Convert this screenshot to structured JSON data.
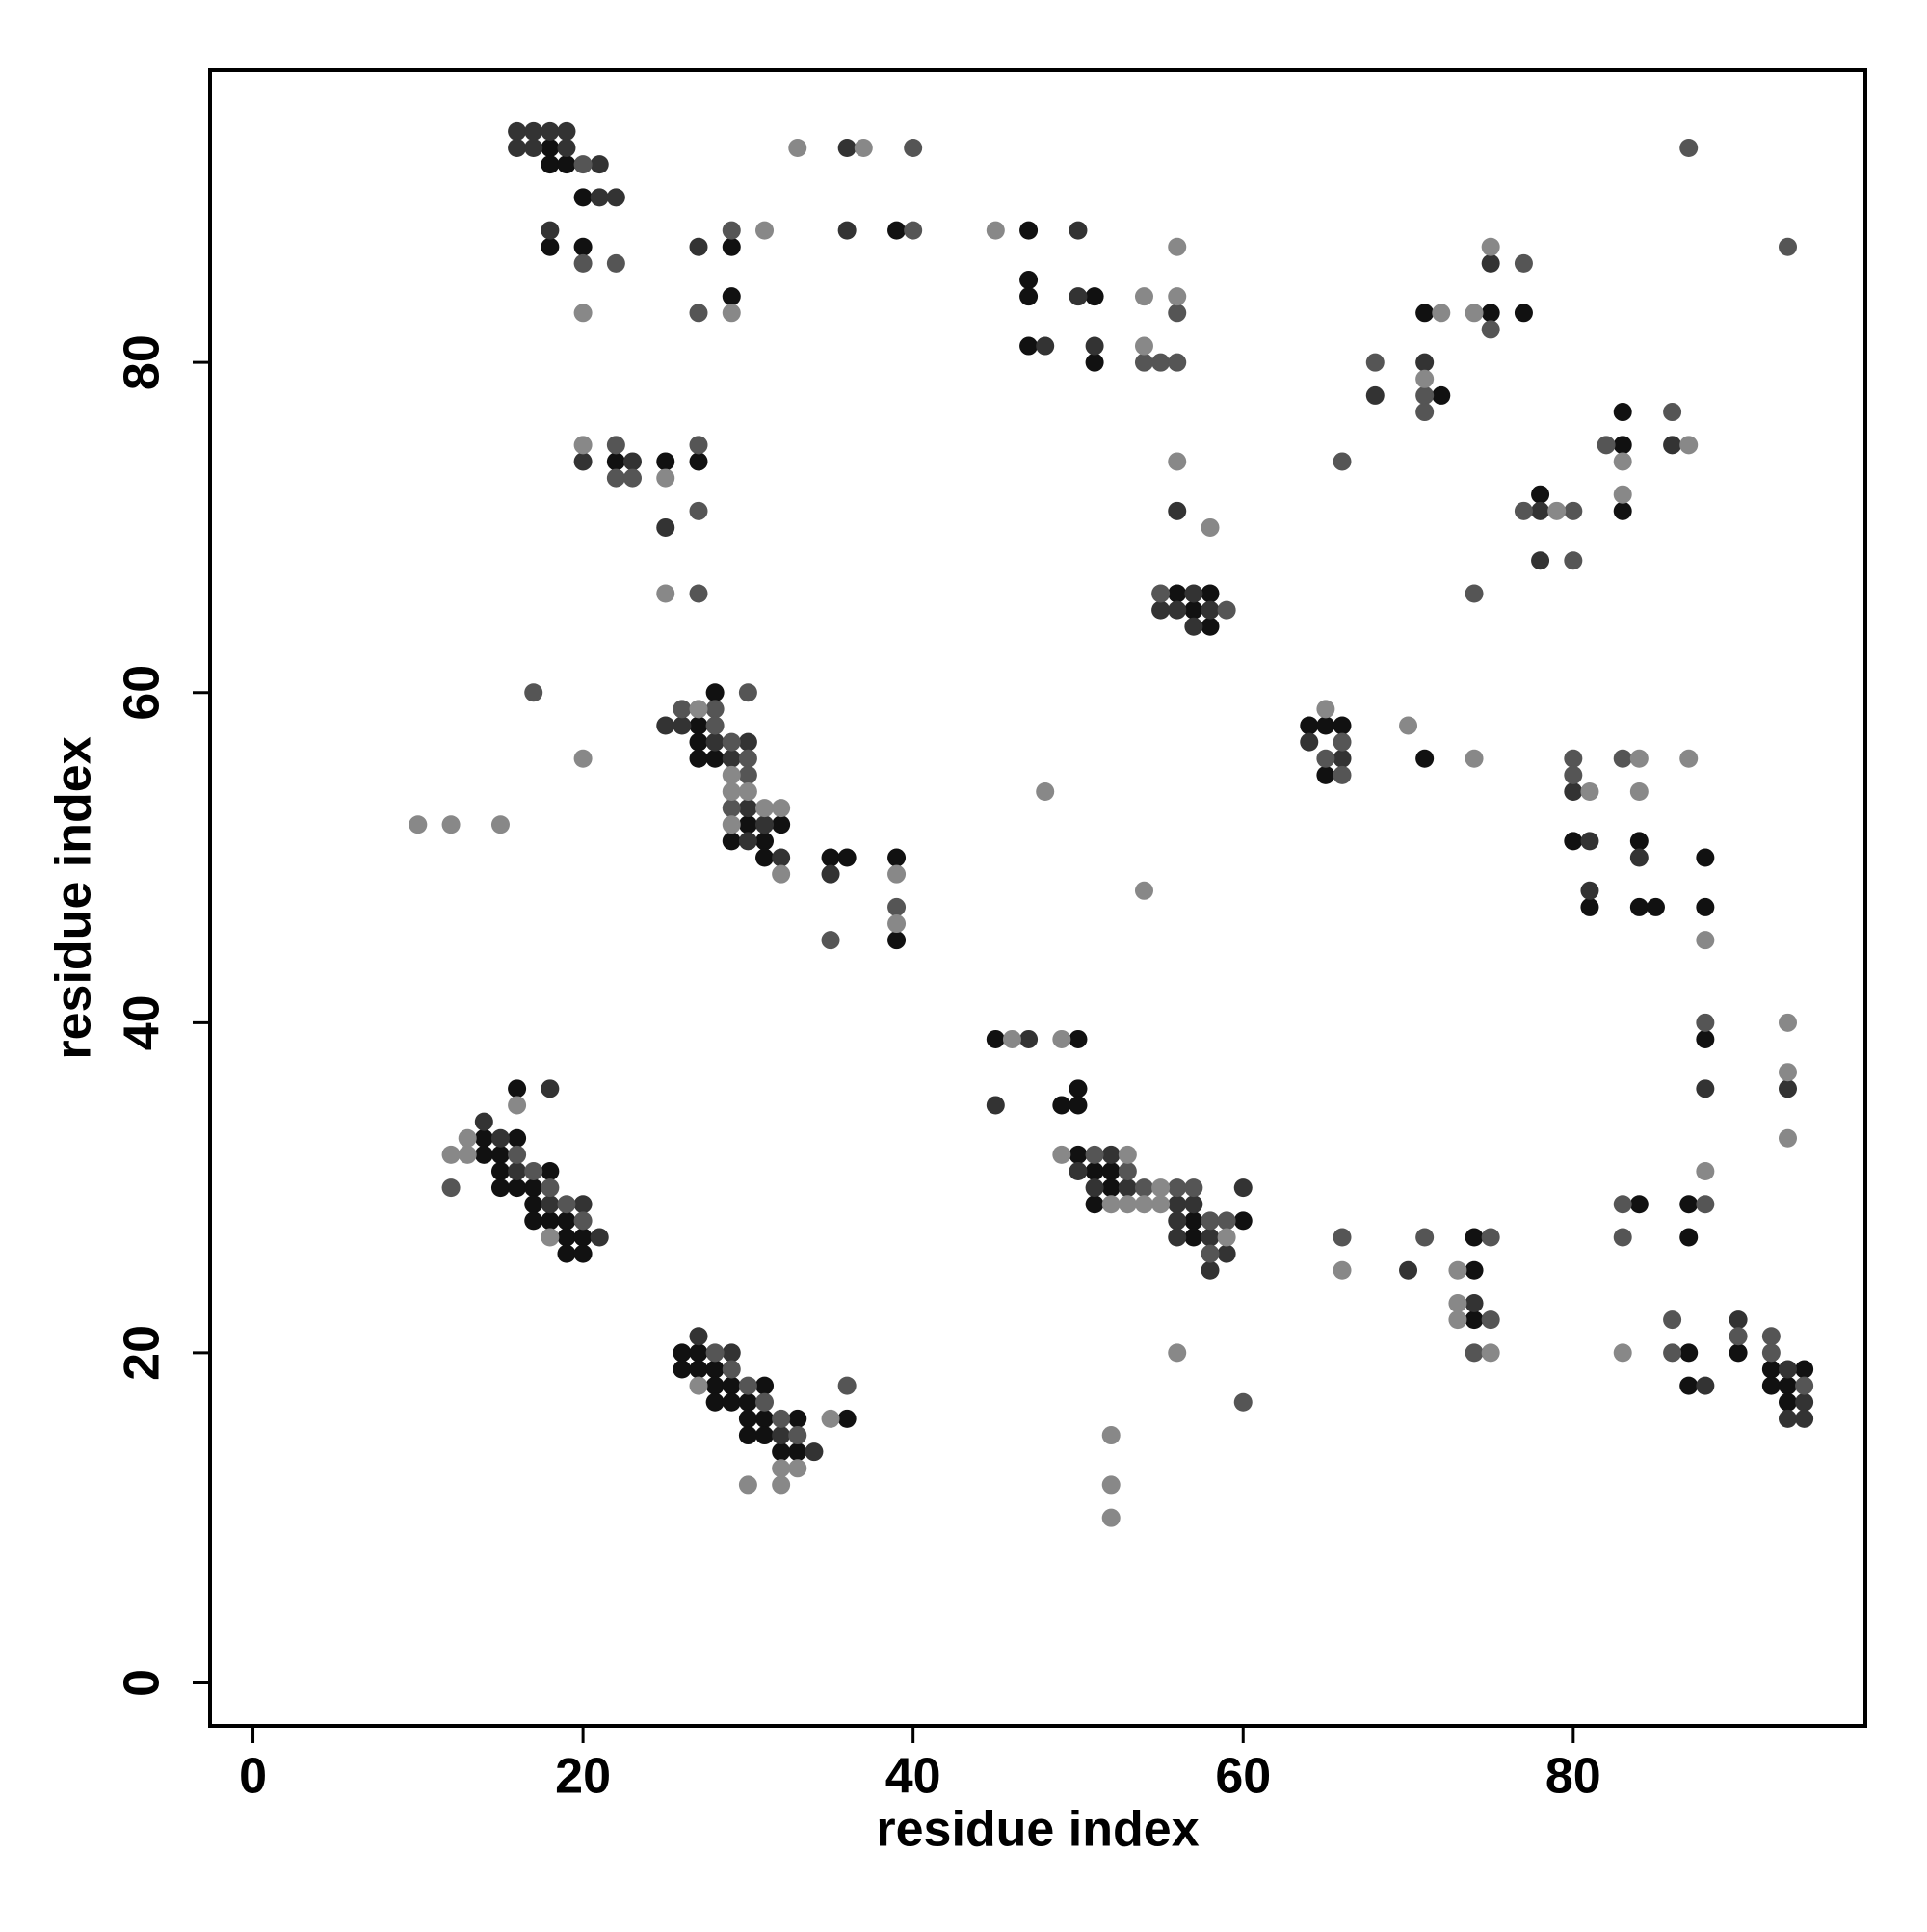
{
  "chart_data": {
    "type": "scatter",
    "x_label": "residue index",
    "y_label": "residue index",
    "xlim": [
      -2.6,
      97.7
    ],
    "ylim": [
      -2.6,
      97.7
    ],
    "xticks": [
      0,
      20,
      40,
      60,
      80
    ],
    "yticks": [
      0,
      20,
      40,
      60,
      80
    ],
    "grid": false,
    "series": [
      {
        "color": "#111111",
        "x": [
          18,
          18,
          19,
          20,
          18,
          20,
          39,
          29,
          29,
          47,
          47,
          47,
          51,
          47,
          51,
          71,
          75,
          77,
          72,
          83,
          83,
          78,
          83,
          22,
          25,
          27,
          56,
          58,
          57,
          58,
          28,
          27,
          27,
          27,
          28,
          30,
          32,
          29,
          31,
          31,
          35,
          36,
          39,
          39,
          64,
          65,
          66,
          65,
          71,
          80,
          84,
          88,
          81,
          84,
          85,
          88,
          45,
          50,
          88,
          50,
          49,
          50,
          84,
          87,
          74,
          87,
          74,
          16,
          14,
          16,
          14,
          15,
          15,
          18,
          15,
          16,
          17,
          17,
          17,
          18,
          19,
          19,
          20,
          19,
          20,
          50,
          51,
          52,
          52,
          51,
          57,
          60,
          57,
          74,
          87,
          90,
          92,
          94,
          87,
          92,
          93,
          93,
          26,
          27,
          26,
          27,
          28,
          28,
          29,
          31,
          28,
          29,
          30,
          30,
          31,
          33,
          36,
          30,
          31,
          32,
          33
        ],
        "y": [
          93,
          92,
          92,
          90,
          87,
          87,
          88,
          87,
          84,
          88,
          85,
          84,
          84,
          81,
          80,
          83,
          83,
          83,
          78,
          77,
          75,
          72,
          71,
          74,
          74,
          74,
          66,
          66,
          65,
          64,
          60,
          58,
          57,
          56,
          56,
          52,
          52,
          51,
          51,
          50,
          50,
          50,
          50,
          45,
          58,
          58,
          58,
          55,
          56,
          51,
          51,
          50,
          47,
          47,
          47,
          47,
          39,
          39,
          39,
          36,
          35,
          35,
          29,
          29,
          27,
          27,
          25,
          36,
          33,
          33,
          32,
          32,
          31,
          31,
          30,
          30,
          30,
          29,
          28,
          28,
          28,
          27,
          27,
          26,
          26,
          32,
          31,
          31,
          30,
          29,
          28,
          28,
          27,
          22,
          20,
          20,
          19,
          19,
          18,
          18,
          18,
          17,
          20,
          20,
          19,
          19,
          19,
          18,
          18,
          18,
          17,
          17,
          17,
          16,
          16,
          16,
          16,
          15,
          15,
          14,
          14
        ]
      },
      {
        "color": "#333333",
        "x": [
          16,
          17,
          18,
          19,
          16,
          17,
          19,
          21,
          21,
          22,
          18,
          36,
          36,
          27,
          50,
          50,
          48,
          51,
          75,
          68,
          71,
          86,
          78,
          78,
          20,
          23,
          25,
          56,
          57,
          55,
          56,
          58,
          57,
          25,
          26,
          28,
          30,
          29,
          30,
          30,
          32,
          35,
          31,
          64,
          66,
          80,
          81,
          84,
          81,
          47,
          88,
          93,
          45,
          70,
          74,
          90,
          18,
          14,
          15,
          16,
          18,
          20,
          21,
          52,
          50,
          51,
          53,
          60,
          56,
          57,
          56,
          56,
          58,
          59,
          58,
          93,
          88,
          94,
          93,
          94,
          27,
          29,
          32,
          34
        ],
        "y": [
          94,
          94,
          94,
          94,
          93,
          93,
          93,
          92,
          90,
          90,
          88,
          93,
          88,
          87,
          88,
          84,
          81,
          81,
          86,
          78,
          80,
          75,
          71,
          68,
          74,
          74,
          70,
          71,
          66,
          65,
          65,
          65,
          64,
          58,
          58,
          57,
          57,
          56,
          51,
          53,
          50,
          49,
          52,
          57,
          56,
          54,
          51,
          50,
          48,
          39,
          36,
          36,
          35,
          25,
          23,
          22,
          36,
          34,
          33,
          31,
          29,
          29,
          27,
          32,
          31,
          30,
          30,
          30,
          29,
          29,
          28,
          27,
          27,
          26,
          25,
          19,
          18,
          17,
          16,
          16,
          21,
          20,
          15,
          14
        ]
      },
      {
        "color": "#555555",
        "x": [
          20,
          20,
          22,
          29,
          27,
          40,
          40,
          56,
          54,
          55,
          56,
          93,
          87,
          77,
          75,
          68,
          71,
          71,
          86,
          82,
          66,
          77,
          80,
          80,
          74,
          22,
          27,
          22,
          23,
          27,
          27,
          55,
          59,
          17,
          30,
          26,
          28,
          28,
          29,
          30,
          30,
          29,
          39,
          35,
          66,
          65,
          66,
          80,
          83,
          80,
          88,
          88,
          83,
          66,
          71,
          75,
          83,
          16,
          17,
          12,
          18,
          19,
          20,
          51,
          53,
          54,
          56,
          57,
          58,
          59,
          58,
          75,
          86,
          90,
          92,
          74,
          86,
          92,
          94,
          28,
          29,
          30,
          31,
          32,
          33,
          36,
          60
        ],
        "y": [
          92,
          86,
          86,
          88,
          83,
          93,
          88,
          83,
          80,
          80,
          80,
          87,
          93,
          86,
          82,
          80,
          78,
          77,
          77,
          75,
          74,
          71,
          71,
          68,
          66,
          75,
          75,
          73,
          73,
          71,
          66,
          66,
          65,
          60,
          60,
          59,
          59,
          58,
          57,
          56,
          55,
          53,
          47,
          45,
          57,
          56,
          55,
          56,
          56,
          55,
          40,
          29,
          29,
          27,
          27,
          27,
          27,
          32,
          31,
          30,
          30,
          29,
          28,
          32,
          31,
          30,
          30,
          30,
          28,
          28,
          26,
          22,
          22,
          21,
          21,
          20,
          20,
          20,
          18,
          20,
          19,
          18,
          17,
          16,
          15,
          18,
          17
        ]
      },
      {
        "color": "#888888",
        "x": [
          33,
          37,
          31,
          45,
          29,
          20,
          56,
          54,
          56,
          54,
          75,
          72,
          74,
          71,
          87,
          83,
          83,
          79,
          20,
          25,
          25,
          56,
          58,
          27,
          20,
          29,
          29,
          30,
          31,
          32,
          10,
          12,
          15,
          29,
          32,
          39,
          39,
          65,
          70,
          74,
          84,
          87,
          48,
          81,
          84,
          54,
          88,
          93,
          46,
          49,
          93,
          93,
          88,
          66,
          73,
          73,
          73,
          83,
          75,
          16,
          13,
          12,
          13,
          18,
          49,
          53,
          52,
          53,
          54,
          55,
          55,
          59,
          56,
          52,
          52,
          52,
          27,
          35,
          32,
          33,
          30,
          32
        ],
        "y": [
          93,
          93,
          88,
          88,
          83,
          83,
          87,
          84,
          84,
          81,
          87,
          83,
          83,
          79,
          75,
          74,
          72,
          71,
          75,
          73,
          66,
          74,
          70,
          59,
          56,
          55,
          54,
          54,
          53,
          53,
          52,
          52,
          52,
          52,
          49,
          49,
          46,
          59,
          58,
          56,
          56,
          56,
          54,
          54,
          54,
          48,
          45,
          40,
          39,
          39,
          37,
          33,
          31,
          25,
          25,
          23,
          22,
          20,
          20,
          35,
          33,
          32,
          32,
          27,
          32,
          32,
          29,
          29,
          29,
          29,
          30,
          27,
          20,
          15,
          12,
          10,
          18,
          16,
          13,
          13,
          12,
          12
        ]
      }
    ]
  }
}
